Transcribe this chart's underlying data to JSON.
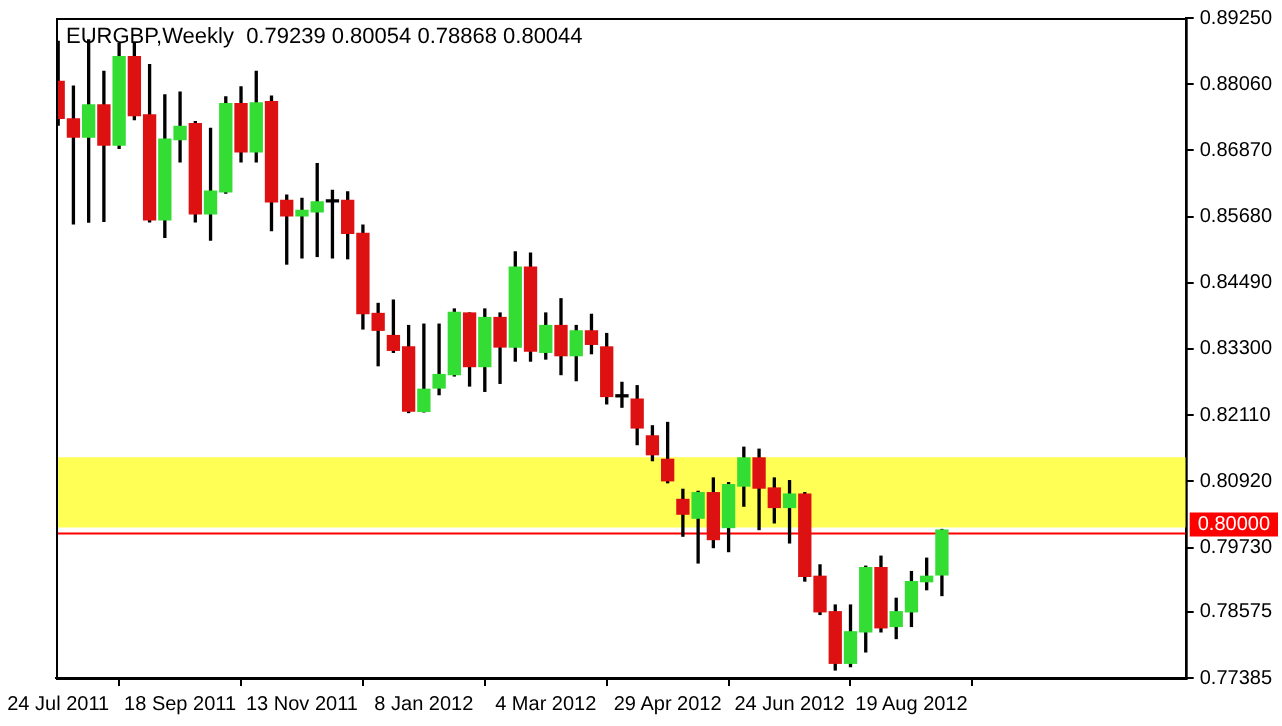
{
  "chart_data": {
    "type": "candlestick",
    "title": "EURGBP,Weekly  0.79239 0.80054 0.78868 0.80044",
    "x": [
      "2011-07-24",
      "2011-07-31",
      "2011-08-07",
      "2011-08-14",
      "2011-08-21",
      "2011-08-28",
      "2011-09-04",
      "2011-09-11",
      "2011-09-18",
      "2011-09-25",
      "2011-10-02",
      "2011-10-09",
      "2011-10-16",
      "2011-10-23",
      "2011-10-30",
      "2011-11-06",
      "2011-11-13",
      "2011-11-20",
      "2011-11-27",
      "2011-12-04",
      "2011-12-11",
      "2011-12-18",
      "2011-12-25",
      "2012-01-01",
      "2012-01-08",
      "2012-01-15",
      "2012-01-22",
      "2012-01-29",
      "2012-02-05",
      "2012-02-12",
      "2012-02-19",
      "2012-02-26",
      "2012-03-04",
      "2012-03-11",
      "2012-03-18",
      "2012-03-25",
      "2012-04-01",
      "2012-04-08",
      "2012-04-15",
      "2012-04-22",
      "2012-04-29",
      "2012-05-06",
      "2012-05-13",
      "2012-05-20",
      "2012-05-27",
      "2012-06-03",
      "2012-06-10",
      "2012-06-17",
      "2012-06-24",
      "2012-07-01",
      "2012-07-08",
      "2012-07-15",
      "2012-07-22",
      "2012-07-29",
      "2012-08-05",
      "2012-08-12",
      "2012-08-19",
      "2012-08-26",
      "2012-09-02"
    ],
    "ohlc": [
      [
        0.88109,
        0.8883,
        0.87327,
        0.87447
      ],
      [
        0.87435,
        0.88024,
        0.85548,
        0.8711
      ],
      [
        0.8711,
        0.88854,
        0.85581,
        0.87688
      ],
      [
        0.87688,
        0.88289,
        0.85596,
        0.86966
      ],
      [
        0.86966,
        0.88794,
        0.86906,
        0.88553
      ],
      [
        0.88553,
        0.88794,
        0.87423,
        0.87495
      ],
      [
        0.87507,
        0.88409,
        0.85584,
        0.8562
      ],
      [
        0.8562,
        0.87868,
        0.85307,
        0.87074
      ],
      [
        0.87062,
        0.87916,
        0.86666,
        0.87302
      ],
      [
        0.87351,
        0.87387,
        0.85584,
        0.85728
      ],
      [
        0.85728,
        0.87267,
        0.85259,
        0.86137
      ],
      [
        0.86125,
        0.87831,
        0.86101,
        0.87711
      ],
      [
        0.87711,
        0.88012,
        0.86666,
        0.86846
      ],
      [
        0.86846,
        0.88289,
        0.86666,
        0.87723
      ],
      [
        0.87748,
        0.87844,
        0.85427,
        0.85945
      ],
      [
        0.85969,
        0.86065,
        0.84827,
        0.85692
      ],
      [
        0.85692,
        0.86005,
        0.84938,
        0.85789
      ],
      [
        0.85764,
        0.8663,
        0.84964,
        0.85945
      ],
      [
        0.85945,
        0.86149,
        0.84938,
        0.85945
      ],
      [
        0.85969,
        0.86125,
        0.84923,
        0.85379
      ],
      [
        0.85379,
        0.85524,
        0.83661,
        0.83938
      ],
      [
        0.83938,
        0.84118,
        0.83,
        0.83637
      ],
      [
        0.83541,
        0.84178,
        0.8324,
        0.83277
      ],
      [
        0.83336,
        0.83721,
        0.82158,
        0.82182
      ],
      [
        0.82178,
        0.83745,
        0.8217,
        0.82575
      ],
      [
        0.82599,
        0.83745,
        0.82479,
        0.8284
      ],
      [
        0.8284,
        0.84018,
        0.82816,
        0.83958
      ],
      [
        0.83946,
        0.83946,
        0.82635,
        0.82984
      ],
      [
        0.82984,
        0.84018,
        0.82539,
        0.83865
      ],
      [
        0.83865,
        0.83946,
        0.82683,
        0.83336
      ],
      [
        0.83336,
        0.85046,
        0.83083,
        0.84769
      ],
      [
        0.84769,
        0.85022,
        0.83083,
        0.83264
      ],
      [
        0.8324,
        0.83946,
        0.8312,
        0.83721
      ],
      [
        0.83721,
        0.84202,
        0.8284,
        0.8318
      ],
      [
        0.8318,
        0.83721,
        0.82731,
        0.83625
      ],
      [
        0.83625,
        0.83922,
        0.83216,
        0.83384
      ],
      [
        0.83336,
        0.83577,
        0.82314,
        0.82446
      ],
      [
        0.8244,
        0.82699,
        0.82254,
        0.8244
      ],
      [
        0.82398,
        0.82639,
        0.81581,
        0.81881
      ],
      [
        0.81737,
        0.81918,
        0.81293,
        0.814
      ],
      [
        0.81316,
        0.81978,
        0.80896,
        0.80931
      ],
      [
        0.80595,
        0.80776,
        0.79935,
        0.80331
      ],
      [
        0.80259,
        0.8074,
        0.79454,
        0.80716
      ],
      [
        0.80716,
        0.8098,
        0.7973,
        0.79874
      ],
      [
        0.80091,
        0.80896,
        0.79658,
        0.8086
      ],
      [
        0.80836,
        0.81533,
        0.80475,
        0.81341
      ],
      [
        0.81341,
        0.81497,
        0.80054,
        0.808
      ],
      [
        0.808,
        0.8098,
        0.80175,
        0.80451
      ],
      [
        0.80451,
        0.80932,
        0.79814,
        0.80691
      ],
      [
        0.80691,
        0.80716,
        0.79129,
        0.79213
      ],
      [
        0.79213,
        0.79418,
        0.78528,
        0.78576
      ],
      [
        0.78576,
        0.78696,
        0.7753,
        0.7765
      ],
      [
        0.7765,
        0.78696,
        0.7759,
        0.78215
      ],
      [
        0.78215,
        0.79394,
        0.77855,
        0.79369
      ],
      [
        0.79369,
        0.79574,
        0.78215,
        0.78288
      ],
      [
        0.78312,
        0.78817,
        0.78095,
        0.78576
      ],
      [
        0.78576,
        0.79298,
        0.78312,
        0.79117
      ],
      [
        0.79117,
        0.79538,
        0.78973,
        0.79213
      ],
      [
        0.79239,
        0.80054,
        0.78868,
        0.80044
      ]
    ],
    "colors": [
      "#dd1111",
      "#dd1111",
      "#33dd33",
      "#dd1111",
      "#33dd33",
      "#dd1111",
      "#dd1111",
      "#33dd33",
      "#33dd33",
      "#dd1111",
      "#33dd33",
      "#33dd33",
      "#dd1111",
      "#33dd33",
      "#dd1111",
      "#dd1111",
      "#33dd33",
      "#33dd33",
      "#000000",
      "#dd1111",
      "#dd1111",
      "#dd1111",
      "#dd1111",
      "#dd1111",
      "#33dd33",
      "#33dd33",
      "#33dd33",
      "#dd1111",
      "#33dd33",
      "#dd1111",
      "#33dd33",
      "#dd1111",
      "#33dd33",
      "#dd1111",
      "#33dd33",
      "#dd1111",
      "#dd1111",
      "#000000",
      "#dd1111",
      "#dd1111",
      "#dd1111",
      "#dd1111",
      "#33dd33",
      "#dd1111",
      "#33dd33",
      "#33dd33",
      "#dd1111",
      "#dd1111",
      "#33dd33",
      "#dd1111",
      "#dd1111",
      "#dd1111",
      "#33dd33",
      "#33dd33",
      "#dd1111",
      "#33dd33",
      "#33dd33",
      "#33dd33",
      "#33dd33"
    ],
    "xlim": [
      "2011-07-23",
      "2012-12-23"
    ],
    "xticks": [
      {
        "value": "2011-07-24",
        "label": "24 Jul 2011"
      },
      {
        "value": "2011-09-18",
        "label": "18 Sep 2011"
      },
      {
        "value": "2011-11-13",
        "label": "13 Nov 2011"
      },
      {
        "value": "2012-01-08",
        "label": "8 Jan 2012"
      },
      {
        "value": "2012-03-04",
        "label": "4 Mar 2012"
      },
      {
        "value": "2012-04-29",
        "label": "29 Apr 2012"
      },
      {
        "value": "2012-06-24",
        "label": "24 Jun 2012"
      },
      {
        "value": "2012-08-19",
        "label": "19 Aug 2012"
      }
    ],
    "ylim": [
      0.77385,
      0.8925
    ],
    "yticks": [
      {
        "value": 0.77385,
        "label": "0.77385"
      },
      {
        "value": 0.78575,
        "label": "0.78575"
      },
      {
        "value": 0.7973,
        "label": "0.79730"
      },
      {
        "value": 0.8092,
        "label": "0.80920"
      },
      {
        "value": 0.8211,
        "label": "0.82110"
      },
      {
        "value": 0.833,
        "label": "0.83300"
      },
      {
        "value": 0.8449,
        "label": "0.84490"
      },
      {
        "value": 0.8568,
        "label": "0.85680"
      },
      {
        "value": 0.8687,
        "label": "0.86870"
      },
      {
        "value": 0.8806,
        "label": "0.88060"
      },
      {
        "value": 0.8925,
        "label": "0.89250"
      }
    ],
    "ref_lines": [
      {
        "axis": "y",
        "value": 0.8,
        "label": "0.80000",
        "color": "#ff0000"
      }
    ],
    "bands": [
      {
        "axis": "y",
        "from": 0.80091,
        "to": 0.81353,
        "color": "#ffff55"
      }
    ],
    "grid": false,
    "legend": false
  }
}
